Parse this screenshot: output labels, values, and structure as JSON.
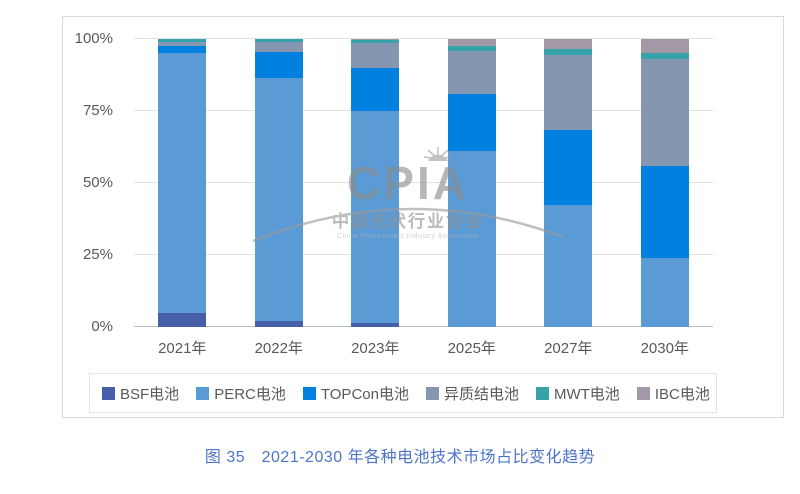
{
  "caption": "图 35　2021-2030 年各种电池技术市场占比变化趋势",
  "watermark": {
    "acronym": "CPIA",
    "name_cn": "中国光伏行业协会",
    "name_en": "China Photovoltaic Industry Association"
  },
  "chart_data": {
    "type": "bar",
    "stacked": true,
    "stacking": "percent",
    "title": "",
    "xlabel": "",
    "ylabel": "",
    "ylim": [
      0,
      100
    ],
    "y_ticks": [
      0,
      25,
      50,
      75,
      100
    ],
    "y_tick_labels": [
      "0%",
      "25%",
      "50%",
      "75%",
      "100%"
    ],
    "grid": true,
    "legend_position": "bottom",
    "categories": [
      "2021年",
      "2022年",
      "2023年",
      "2025年",
      "2027年",
      "2030年"
    ],
    "series": [
      {
        "name": "BSF电池",
        "color": "#4560a8",
        "values": [
          5,
          2,
          1.5,
          0,
          0,
          0
        ]
      },
      {
        "name": "PERC电池",
        "color": "#5b9bd5",
        "values": [
          90,
          84.5,
          73.5,
          61,
          42.5,
          24
        ]
      },
      {
        "name": "TOPCon电池",
        "color": "#0081e0",
        "values": [
          2.5,
          9,
          15,
          20,
          26,
          32
        ]
      },
      {
        "name": "异质结电池",
        "color": "#8496b0",
        "values": [
          1.5,
          3.5,
          8.5,
          15,
          26,
          37
        ]
      },
      {
        "name": "MWT电池",
        "color": "#35a3a9",
        "values": [
          1,
          1,
          1,
          1.5,
          2,
          2
        ]
      },
      {
        "name": "IBC电池",
        "color": "#a399a6",
        "values": [
          0,
          0,
          0.5,
          2.5,
          3.5,
          5
        ]
      }
    ]
  }
}
